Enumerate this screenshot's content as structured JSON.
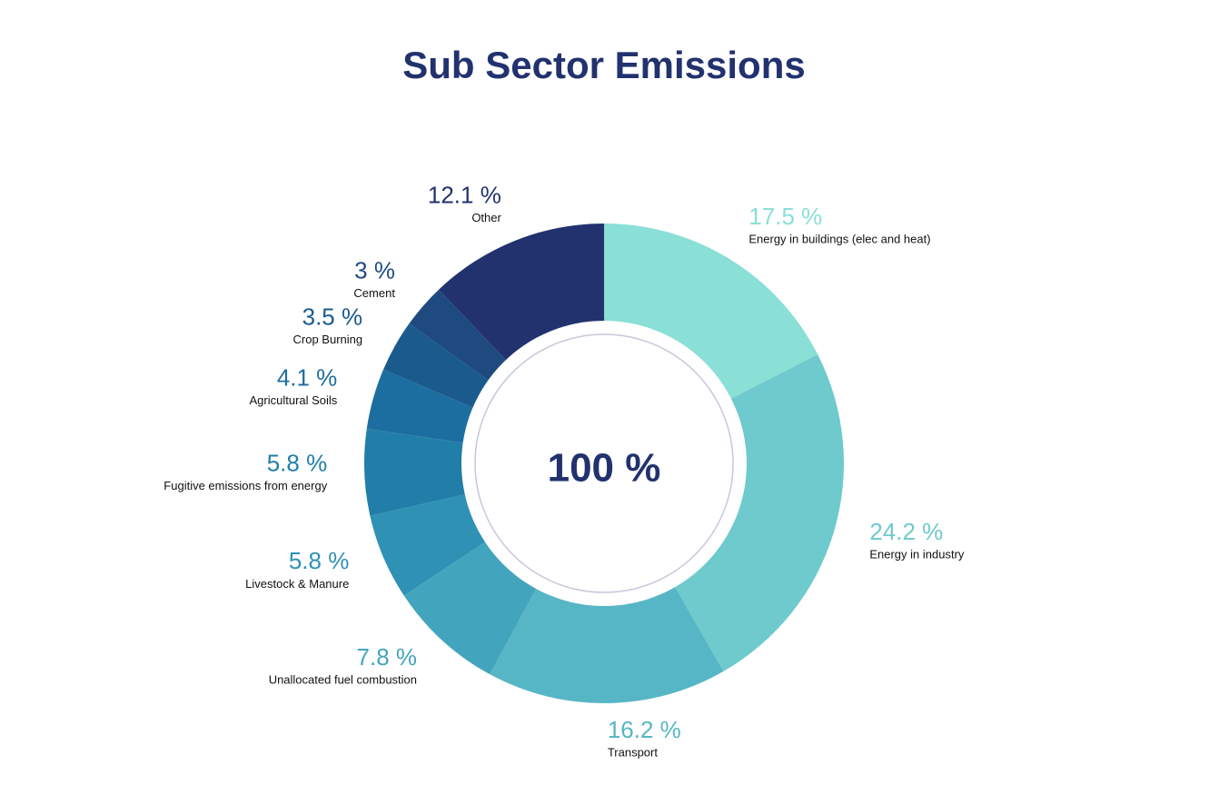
{
  "chart_data": {
    "type": "donut",
    "title": "Sub Sector Emissions",
    "center_label": "100 %",
    "categories": [
      "Energy in buildings (elec and heat)",
      "Energy in industry",
      "Transport",
      "Unallocated fuel combustion",
      "Livestock & Manure",
      "Fugitive emissions from energy",
      "Agricultural Soils",
      "Crop Burning",
      "Cement",
      "Other"
    ],
    "values": [
      17.5,
      24.2,
      16.2,
      7.8,
      5.8,
      5.8,
      4.1,
      3.5,
      3,
      12.1
    ],
    "value_labels": [
      "17.5 %",
      "24.2 %",
      "16.2 %",
      "7.8 %",
      "5.8 %",
      "5.8 %",
      "4.1 %",
      "3.5 %",
      "3 %",
      "12.1 %"
    ],
    "colors": [
      "#8adfd6",
      "#6ecacc",
      "#57b6c5",
      "#43a5bd",
      "#2f91b4",
      "#217ea9",
      "#1d6ea0",
      "#1a5a8d",
      "#1f4a80",
      "#22326e"
    ]
  }
}
